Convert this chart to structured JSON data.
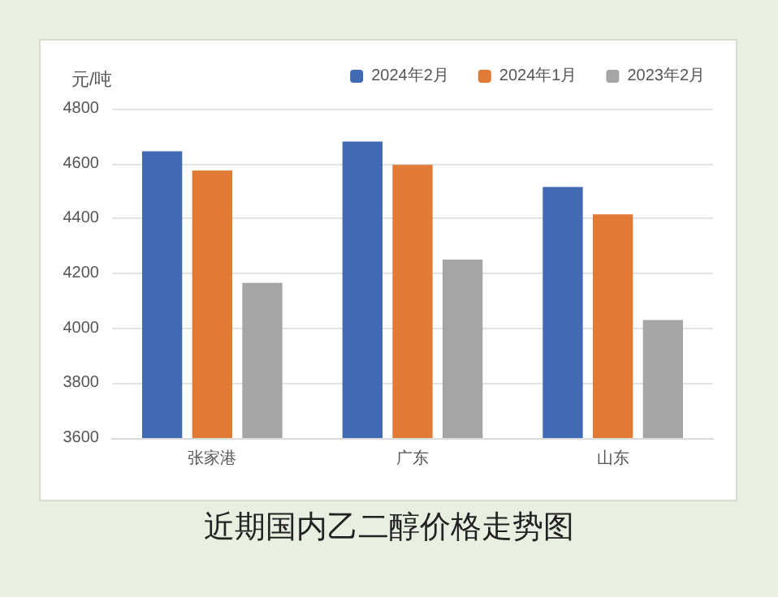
{
  "chart_data": {
    "type": "bar",
    "ylabel": "元/吨",
    "categories": [
      "张家港",
      "广东",
      "山东"
    ],
    "series": [
      {
        "name": "2024年2月",
        "color": "#4169b4",
        "values": [
          4645,
          4680,
          4515
        ]
      },
      {
        "name": "2024年1月",
        "color": "#e07a35",
        "values": [
          4575,
          4595,
          4415
        ]
      },
      {
        "name": "2023年2月",
        "color": "#a5a5a5",
        "values": [
          4165,
          4250,
          4030
        ]
      }
    ],
    "ylim": [
      3600,
      4800
    ],
    "yticks": [
      3600,
      3800,
      4000,
      4200,
      4400,
      4600,
      4800
    ],
    "grid": "y",
    "legend": "top right",
    "annotations": [
      "近期国内乙二醇价格走势图"
    ]
  }
}
